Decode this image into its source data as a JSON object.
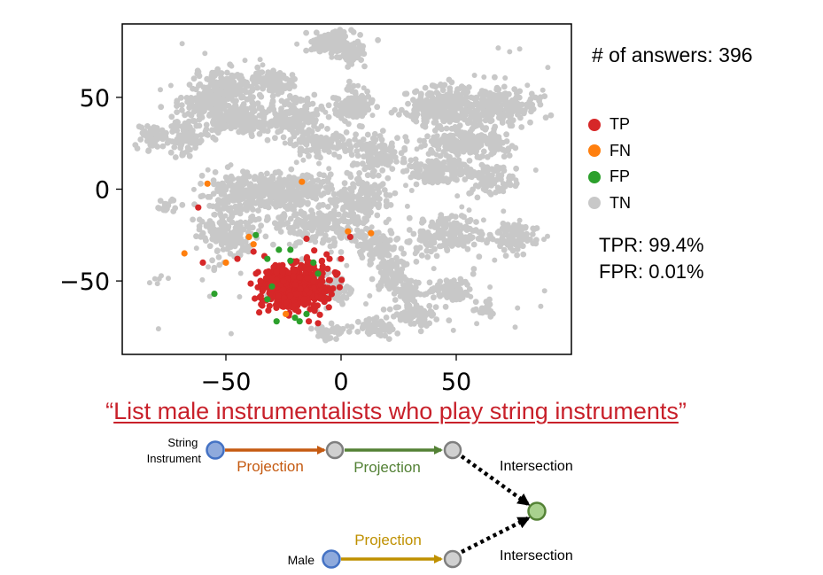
{
  "chart_data": {
    "type": "scatter",
    "title": "",
    "xlabel": "",
    "ylabel": "",
    "xlim": [
      -95,
      100
    ],
    "ylim": [
      -90,
      90
    ],
    "x_ticks": [
      -50,
      0,
      50
    ],
    "y_ticks": [
      50,
      0,
      -50
    ],
    "x_tick_labels": [
      "−50",
      "0",
      "50"
    ],
    "y_tick_labels": [
      "50",
      "0",
      "−50"
    ],
    "grid": false,
    "legend_position": "right",
    "series": [
      {
        "name": "TP",
        "color": "#d62728",
        "description": "dense cluster centered near (-20, -53), plus scattered points",
        "points": [
          [
            -25,
            -50
          ],
          [
            -20,
            -52
          ],
          [
            -15,
            -55
          ],
          [
            -22,
            -58
          ],
          [
            -18,
            -48
          ],
          [
            -28,
            -45
          ],
          [
            -12,
            -50
          ],
          [
            -30,
            -55
          ],
          [
            -10,
            -45
          ],
          [
            -24,
            -62
          ],
          [
            -16,
            -60
          ],
          [
            -8,
            -42
          ],
          [
            -35,
            -50
          ],
          [
            -5,
            -38
          ],
          [
            0,
            -38
          ],
          [
            -20,
            -40
          ],
          [
            -62,
            -10
          ],
          [
            -60,
            -40
          ],
          [
            -45,
            -38
          ],
          [
            -14,
            -72
          ],
          [
            -10,
            -73
          ],
          [
            -38,
            -34
          ],
          [
            -15,
            -27
          ],
          [
            4,
            -26
          ]
        ]
      },
      {
        "name": "FN",
        "color": "#ff7f0e",
        "points": [
          [
            -58,
            3
          ],
          [
            -17,
            4
          ],
          [
            -68,
            -35
          ],
          [
            -40,
            -26
          ],
          [
            -50,
            -40
          ],
          [
            3,
            -23
          ],
          [
            13,
            -24
          ],
          [
            -38,
            -30
          ],
          [
            -24,
            -68
          ]
        ]
      },
      {
        "name": "FP",
        "color": "#2ca02c",
        "points": [
          [
            -55,
            -57
          ],
          [
            -37,
            -25
          ],
          [
            -27,
            -33
          ],
          [
            -22,
            -33
          ],
          [
            -32,
            -38
          ],
          [
            -22,
            -39
          ],
          [
            -12,
            -40
          ],
          [
            -10,
            -46
          ],
          [
            -30,
            -53
          ],
          [
            -15,
            -68
          ],
          [
            -28,
            -72
          ],
          [
            -20,
            -70
          ],
          [
            -18,
            -72
          ],
          [
            -32,
            -60
          ]
        ]
      },
      {
        "name": "TN",
        "color": "#c8c8c8",
        "description": "background t-SNE clusters covering most of the plot"
      }
    ]
  },
  "stats": {
    "answers": "# of answers: 396",
    "tpr": "TPR: 99.4%",
    "fpr": "FPR: 0.01%"
  },
  "query": {
    "text": "List male instrumentalists who play string instruments",
    "open_quote": "“",
    "close_quote": "”",
    "color": "#c8202a"
  },
  "query_graph": {
    "anchor1": "String\nInstrument",
    "anchor2": "Male",
    "proj1": "Projection",
    "proj2": "Projection",
    "proj3": "Projection",
    "intersection_top": "Intersection",
    "intersection_bottom": "Intersection",
    "colors": {
      "proj1": "#c55a11",
      "proj2": "#538135",
      "proj3": "#bf9000",
      "anchor": "#4472c4",
      "anchor_fill": "#8faadc",
      "node_fill": "#d0d0d0",
      "target_fill": "#a9d18e",
      "target_stroke": "#548235"
    }
  }
}
